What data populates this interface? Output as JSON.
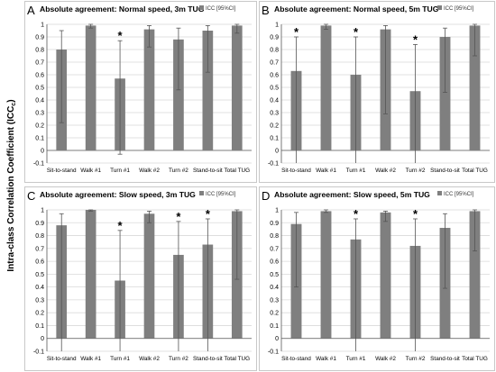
{
  "figure": {
    "ylabel_main": "Intra-class Correlation Coefficient",
    "ylabel_sub": "ICC"
  },
  "chart_data": [
    {
      "type": "bar",
      "panel_letter": "A",
      "title": "Absolute agreement: Normal speed, 3m TUG",
      "legend": "ICC [95%CI]",
      "legend_position": "top-right",
      "categories": [
        "Sit-to-stand",
        "Walk #1",
        "Turn #1",
        "Walk #2",
        "Turn #2",
        "Stand-to-sit",
        "Total TUG"
      ],
      "values": [
        0.8,
        0.99,
        0.57,
        0.96,
        0.88,
        0.95,
        0.99
      ],
      "ci_lower": [
        0.22,
        0.97,
        -0.03,
        0.82,
        0.48,
        0.62,
        0.93
      ],
      "ci_upper": [
        0.95,
        1.0,
        0.87,
        0.99,
        0.97,
        0.99,
        1.0
      ],
      "significant": [
        false,
        false,
        true,
        false,
        false,
        false,
        false
      ],
      "ylim": [
        -0.1,
        1.0
      ],
      "yticks": [
        "-0.1",
        "0",
        "0.1",
        "0.2",
        "0.3",
        "0.4",
        "0.5",
        "0.6",
        "0.7",
        "0.8",
        "0.9",
        "1"
      ],
      "grid": true
    },
    {
      "type": "bar",
      "panel_letter": "B",
      "title": "Absolute agreement: Normal speed, 5m TUG",
      "legend": "ICC [95%CI]",
      "legend_position": "top-right",
      "categories": [
        "Sit-to-stand",
        "Walk #1",
        "Turn #1",
        "Walk #2",
        "Turn #2",
        "Stand-to-sit",
        "Total TUG"
      ],
      "values": [
        0.63,
        0.99,
        0.6,
        0.96,
        0.47,
        0.9,
        0.99
      ],
      "ci_lower": [
        -0.1,
        0.96,
        -0.1,
        0.29,
        -0.1,
        0.46,
        0.75
      ],
      "ci_upper": [
        0.9,
        1.0,
        0.9,
        0.99,
        0.84,
        0.97,
        1.0
      ],
      "significant": [
        true,
        false,
        true,
        false,
        true,
        false,
        false
      ],
      "ylim": [
        -0.1,
        1.0
      ],
      "yticks": [
        "-0.1",
        "0",
        "0.1",
        "0.2",
        "0.3",
        "0.4",
        "0.5",
        "0.6",
        "0.7",
        "0.8",
        "0.9",
        "1"
      ],
      "grid": true
    },
    {
      "type": "bar",
      "panel_letter": "C",
      "title": "Absolute agreement: Slow speed, 3m TUG",
      "legend": "ICC [95%CI]",
      "legend_position": "top-right",
      "categories": [
        "Sit-to-stand",
        "Walk #1",
        "Turn #1",
        "Walk #2",
        "Turn #2",
        "Stand-to-sit",
        "Total TUG"
      ],
      "values": [
        0.88,
        1.0,
        0.45,
        0.97,
        0.65,
        0.73,
        0.99
      ],
      "ci_lower": [
        -0.1,
        0.99,
        -0.1,
        0.9,
        -0.1,
        -0.1,
        0.46
      ],
      "ci_upper": [
        0.97,
        1.0,
        0.84,
        0.99,
        0.91,
        0.93,
        1.0
      ],
      "significant": [
        false,
        false,
        true,
        false,
        true,
        true,
        false
      ],
      "ylim": [
        -0.1,
        1.0
      ],
      "yticks": [
        "-0.1",
        "0",
        "0.1",
        "0.2",
        "0.3",
        "0.4",
        "0.5",
        "0.6",
        "0.7",
        "0.8",
        "0.9",
        "1"
      ],
      "grid": true
    },
    {
      "type": "bar",
      "panel_letter": "D",
      "title": "Absolute agreement: Slow speed, 5m TUG",
      "legend": "ICC [95%CI]",
      "legend_position": "top-right",
      "categories": [
        "Sit-to-stand",
        "Walk #1",
        "Turn #1",
        "Walk #2",
        "Turn #2",
        "Stand-to-sit",
        "Total TUG"
      ],
      "values": [
        0.89,
        0.99,
        0.77,
        0.98,
        0.72,
        0.86,
        0.99
      ],
      "ci_lower": [
        0.4,
        0.98,
        -0.1,
        0.91,
        -0.1,
        0.39,
        0.68
      ],
      "ci_upper": [
        0.98,
        1.0,
        0.93,
        0.99,
        0.93,
        0.97,
        1.0
      ],
      "significant": [
        false,
        false,
        true,
        false,
        true,
        false,
        false
      ],
      "ylim": [
        -0.1,
        1.0
      ],
      "yticks": [
        "-0.1",
        "0",
        "0.1",
        "0.2",
        "0.3",
        "0.4",
        "0.5",
        "0.6",
        "0.7",
        "0.8",
        "0.9",
        "1"
      ],
      "grid": true
    }
  ],
  "colors": {
    "bar": "#7f7f7f",
    "grid": "#d9d9d9",
    "axis": "#595959",
    "text": "#000000",
    "frame": "#c8c8c8"
  }
}
